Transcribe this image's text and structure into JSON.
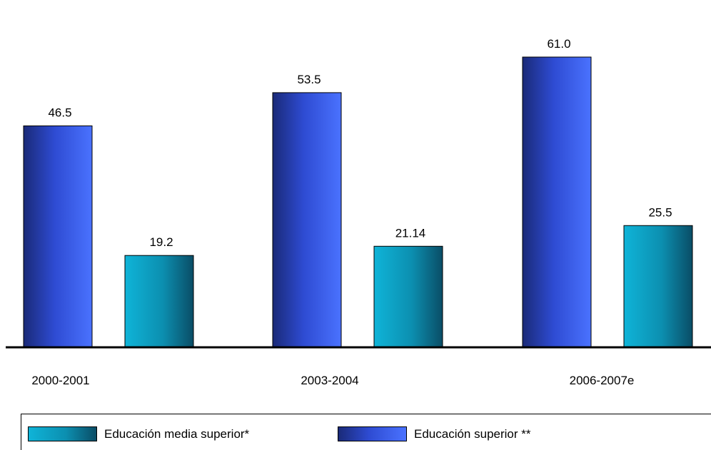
{
  "chart_data": {
    "type": "bar",
    "categories": [
      "2000-2001",
      "2003-2004",
      "2006-2007e"
    ],
    "series": [
      {
        "name": "Educación superior **",
        "values": [
          46.5,
          53.5,
          61.0
        ],
        "labels": [
          "46.5",
          "53.5",
          "61.0"
        ],
        "color": "#2f4fd8"
      },
      {
        "name": "Educación media superior*",
        "values": [
          19.2,
          21.14,
          25.5
        ],
        "labels": [
          "19.2",
          "21.14",
          "25.5"
        ],
        "color": "#1aa7c4"
      }
    ],
    "ylim": [
      0,
      65
    ],
    "grid": false,
    "legend_position": "bottom"
  },
  "legend": {
    "items": [
      {
        "label": "Educación media superior*",
        "swatch": "teal"
      },
      {
        "label": "Educación superior **",
        "swatch": "blue"
      }
    ]
  }
}
